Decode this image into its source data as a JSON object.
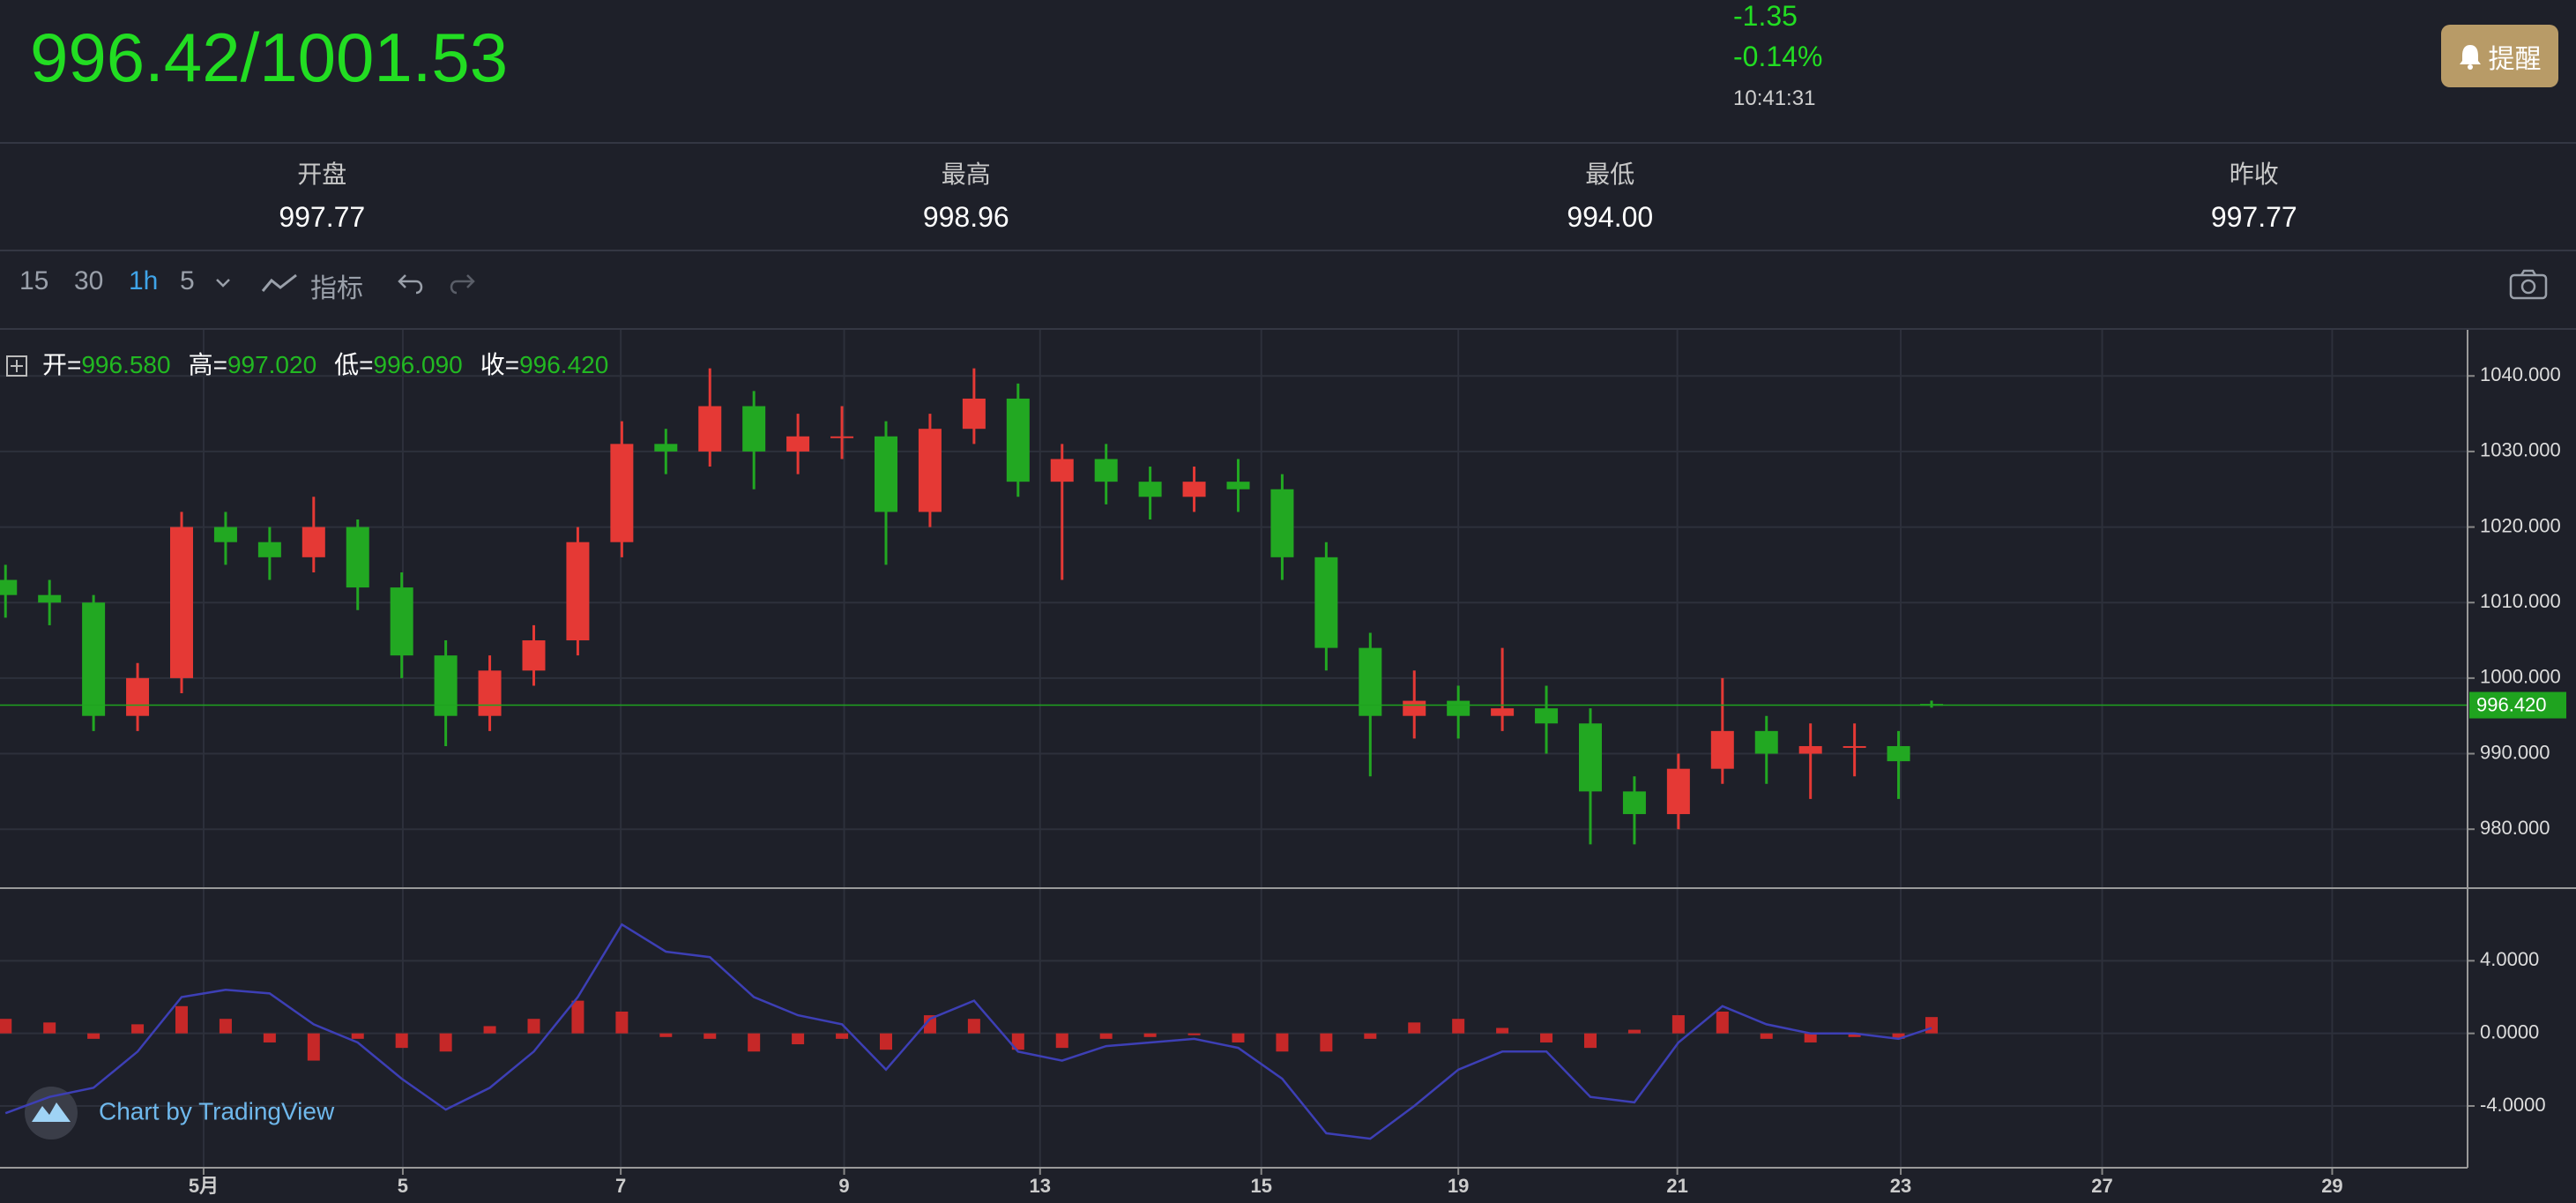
{
  "header": {
    "price": "996.42/1001.53",
    "change": "-1.35",
    "change_pct": "-0.14%",
    "time": "10:41:31",
    "alert_button": "提醒"
  },
  "stats": [
    {
      "label": "开盘",
      "value": "997.77"
    },
    {
      "label": "最高",
      "value": "998.96"
    },
    {
      "label": "最低",
      "value": "994.00"
    },
    {
      "label": "昨收",
      "value": "997.77"
    }
  ],
  "toolbar": {
    "intervals": [
      "15",
      "30",
      "1h",
      "5"
    ],
    "indicators": "指标"
  },
  "watermark": "Chart by TradingView",
  "chart_data": [
    {
      "type": "candlestick",
      "up_color": "#e53935",
      "down_color": "#22a822",
      "grid": true,
      "legend": {
        "labels": [
          "开=",
          "高=",
          "低=",
          "收="
        ],
        "values": [
          "996.580",
          "997.020",
          "996.090",
          "996.420"
        ]
      },
      "xlim": [
        -1.85,
        20.57
      ],
      "ylim": [
        972.2,
        1046.1
      ],
      "yticks": [
        {
          "value": 980,
          "label": "980.000"
        },
        {
          "value": 990,
          "label": "990.000"
        },
        {
          "value": 1000,
          "label": "1000.000"
        },
        {
          "value": 1010,
          "label": "1010.000"
        },
        {
          "value": 1020,
          "label": "1020.000"
        },
        {
          "value": 1030,
          "label": "1030.000"
        },
        {
          "value": 1040,
          "label": "1040.000"
        }
      ],
      "x": [
        -1.8,
        -1.4,
        -1,
        -0.6,
        -0.2,
        0.2,
        0.6,
        1,
        1.4,
        1.8,
        2.2,
        2.6,
        3,
        3.4,
        3.8,
        4.2,
        4.6,
        5,
        5.4,
        5.8,
        6.2,
        6.6,
        7,
        7.4,
        7.8,
        8.2,
        8.6,
        9,
        9.4,
        9.8,
        10.2,
        10.6,
        11,
        11.4,
        11.8,
        12.2,
        12.6,
        13,
        13.4,
        13.8,
        14.2,
        14.6,
        15,
        15.4,
        15.7
      ],
      "candles": [
        [
          1013,
          1015,
          1008,
          1011
        ],
        [
          1011,
          1013,
          1007,
          1010
        ],
        [
          1010,
          1011,
          993,
          995
        ],
        [
          995,
          1002,
          993,
          1000
        ],
        [
          1000,
          1022,
          998,
          1020
        ],
        [
          1020,
          1022,
          1015,
          1018
        ],
        [
          1018,
          1020,
          1013,
          1016
        ],
        [
          1016,
          1024,
          1014,
          1020
        ],
        [
          1020,
          1021,
          1009,
          1012
        ],
        [
          1012,
          1014,
          1000,
          1003
        ],
        [
          1003,
          1005,
          991,
          995
        ],
        [
          995,
          1003,
          993,
          1001
        ],
        [
          1001,
          1007,
          999,
          1005
        ],
        [
          1005,
          1020,
          1003,
          1018
        ],
        [
          1018,
          1034,
          1016,
          1031
        ],
        [
          1031,
          1033,
          1027,
          1030
        ],
        [
          1030,
          1041,
          1028,
          1036
        ],
        [
          1036,
          1038,
          1025,
          1030
        ],
        [
          1030,
          1035,
          1027,
          1032
        ],
        [
          1032,
          1036,
          1029,
          1032
        ],
        [
          1032,
          1034,
          1015,
          1022
        ],
        [
          1022,
          1035,
          1020,
          1033
        ],
        [
          1033,
          1041,
          1031,
          1037
        ],
        [
          1037,
          1039,
          1024,
          1026
        ],
        [
          1026,
          1031,
          1013,
          1029
        ],
        [
          1029,
          1031,
          1023,
          1026
        ],
        [
          1026,
          1028,
          1021,
          1024
        ],
        [
          1024,
          1028,
          1022,
          1026
        ],
        [
          1026,
          1029,
          1022,
          1025
        ],
        [
          1025,
          1027,
          1013,
          1016
        ],
        [
          1016,
          1018,
          1001,
          1004
        ],
        [
          1004,
          1006,
          987,
          995
        ],
        [
          995,
          1001,
          992,
          997
        ],
        [
          997,
          999,
          992,
          995
        ],
        [
          995,
          1004,
          993,
          996
        ],
        [
          996,
          999,
          990,
          994
        ],
        [
          994,
          996,
          978,
          985
        ],
        [
          985,
          987,
          978,
          982
        ],
        [
          982,
          990,
          980,
          988
        ],
        [
          988,
          1000,
          986,
          993
        ],
        [
          993,
          995,
          986,
          990
        ],
        [
          990,
          994,
          984,
          991
        ],
        [
          991,
          994,
          987,
          991
        ],
        [
          991,
          993,
          984,
          989
        ],
        [
          996.58,
          997.02,
          996.09,
          996.42
        ]
      ]
    },
    {
      "type": "macd",
      "hist_color": "#c62828",
      "dif_color": "#3d3fb5",
      "grid": true,
      "xlim": [
        -1.85,
        20.57
      ],
      "ylim": [
        -7.4,
        8
      ],
      "yticks": [
        {
          "value": -4,
          "label": "-4.0000"
        },
        {
          "value": 0,
          "label": "0.0000"
        },
        {
          "value": 4,
          "label": "4.0000"
        }
      ],
      "xticks": [
        {
          "value": 0,
          "label": "5月"
        },
        {
          "value": 1.81,
          "label": "5"
        },
        {
          "value": 3.79,
          "label": "7"
        },
        {
          "value": 5.82,
          "label": "9"
        },
        {
          "value": 7.6,
          "label": "13"
        },
        {
          "value": 9.61,
          "label": "15"
        },
        {
          "value": 11.4,
          "label": "19"
        },
        {
          "value": 13.39,
          "label": "21"
        },
        {
          "value": 15.42,
          "label": "23"
        },
        {
          "value": 17.25,
          "label": "27"
        },
        {
          "value": 19.34,
          "label": "29"
        }
      ],
      "x": [
        -1.8,
        -1.4,
        -1,
        -0.6,
        -0.2,
        0.2,
        0.6,
        1,
        1.4,
        1.8,
        2.2,
        2.6,
        3,
        3.4,
        3.8,
        4.2,
        4.6,
        5,
        5.4,
        5.8,
        6.2,
        6.6,
        7,
        7.4,
        7.8,
        8.2,
        8.6,
        9,
        9.4,
        9.8,
        10.2,
        10.6,
        11,
        11.4,
        11.8,
        12.2,
        12.6,
        13,
        13.4,
        13.8,
        14.2,
        14.6,
        15,
        15.4,
        15.7
      ],
      "hist": [
        0.8,
        0.6,
        -0.3,
        0.5,
        1.5,
        0.8,
        -0.5,
        -1.5,
        -0.3,
        -0.8,
        -1,
        0.4,
        0.8,
        1.8,
        1.2,
        -0.2,
        -0.3,
        -1,
        -0.6,
        -0.3,
        -0.9,
        1,
        0.8,
        -0.9,
        -0.8,
        -0.3,
        -0.2,
        -0.1,
        -0.5,
        -1,
        -1,
        -0.3,
        0.6,
        0.8,
        0.3,
        -0.5,
        -0.8,
        0.2,
        1,
        1.2,
        -0.3,
        -0.5,
        -0.2,
        -0.3,
        0.9
      ],
      "dif": [
        -4.4,
        -3.5,
        -3,
        -1,
        2,
        2.4,
        2.2,
        0.5,
        -0.5,
        -2.5,
        -4.2,
        -3,
        -1,
        2,
        6,
        4.5,
        4.2,
        2,
        1,
        0.5,
        -2,
        0.8,
        1.8,
        -1,
        -1.5,
        -0.7,
        -0.5,
        -0.3,
        -0.8,
        -2.5,
        -5.5,
        -5.8,
        -4,
        -2,
        -1,
        -1,
        -3.5,
        -3.8,
        -0.5,
        1.5,
        0.5,
        0,
        0,
        -0.3,
        0.3
      ]
    }
  ]
}
